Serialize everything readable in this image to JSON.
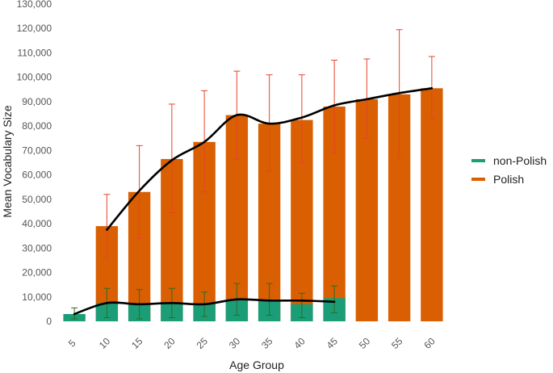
{
  "chart_data": {
    "type": "bar",
    "title": "",
    "xlabel": "Age Group",
    "ylabel": "Mean Vocabulary Size",
    "ylim": [
      0,
      130000
    ],
    "yticks": [
      "0",
      "10,000",
      "20,000",
      "30,000",
      "40,000",
      "50,000",
      "60,000",
      "70,000",
      "80,000",
      "90,000",
      "100,000",
      "110,000",
      "120,000",
      "130,000"
    ],
    "categories": [
      "5",
      "10",
      "15",
      "20",
      "25",
      "30",
      "35",
      "40",
      "45",
      "50",
      "55",
      "60"
    ],
    "legend": {
      "position": "right",
      "entries": [
        "non-Polish",
        "Polish"
      ]
    },
    "series": [
      {
        "name": "non-Polish",
        "color": "#1b9e77",
        "error_color": "#2d6b22",
        "values": [
          3000,
          7500,
          7000,
          7500,
          7000,
          9000,
          8500,
          7000,
          9500,
          null,
          null,
          null
        ],
        "error_low": [
          1000,
          1500,
          1000,
          1500,
          2000,
          2500,
          2500,
          1500,
          3500,
          null,
          null,
          null
        ],
        "error_high": [
          5500,
          13500,
          13000,
          13500,
          12000,
          15500,
          15500,
          11500,
          14500,
          null,
          null,
          null
        ],
        "trend": [
          3000,
          7500,
          7000,
          7500,
          7000,
          9000,
          8500,
          8500,
          8000,
          null,
          null,
          null
        ]
      },
      {
        "name": "Polish",
        "color": "#d95f02",
        "error_color": "#e8432a",
        "values": [
          null,
          39000,
          53000,
          66500,
          73500,
          84500,
          81000,
          82500,
          88000,
          91000,
          93000,
          95500
        ],
        "error_low": [
          null,
          26000,
          34000,
          44500,
          53000,
          66500,
          61500,
          65000,
          69000,
          75000,
          67000,
          83000
        ],
        "error_high": [
          null,
          52000,
          72000,
          89000,
          94500,
          102500,
          101000,
          101000,
          107000,
          107500,
          119500,
          108500
        ],
        "trend": [
          null,
          37500,
          53500,
          66000,
          73500,
          84500,
          81000,
          83500,
          88500,
          91000,
          93500,
          95500
        ]
      }
    ]
  }
}
